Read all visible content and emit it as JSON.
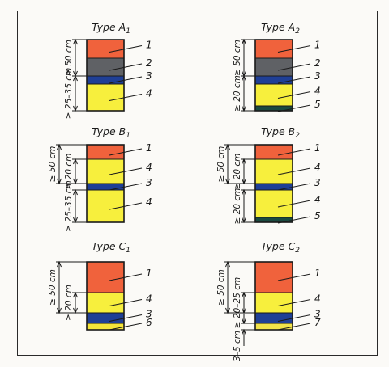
{
  "colors": {
    "1": "#f0623c",
    "2": "#5f6165",
    "3": "#1f3f96",
    "4": "#f7ef3d",
    "5": "#1b4a40",
    "6": "#f5e53a",
    "7": "#f2e34a"
  },
  "panels": [
    {
      "id": "a1",
      "title": "Type A",
      "subscript": "1",
      "layers": [
        {
          "n": "1",
          "h": 23
        },
        {
          "n": "2",
          "h": 22
        },
        {
          "n": "3",
          "h": 10
        },
        {
          "n": "4",
          "h": 33
        }
      ],
      "dimensions": [
        {
          "text": "≥ 50 cm",
          "from": 0,
          "to": 2
        },
        {
          "text": "≥ 25–35 cm",
          "from": 2,
          "to": 4
        }
      ]
    },
    {
      "id": "a2",
      "title": "Type A",
      "subscript": "2",
      "layers": [
        {
          "n": "1",
          "h": 23
        },
        {
          "n": "2",
          "h": 22
        },
        {
          "n": "3",
          "h": 10
        },
        {
          "n": "4",
          "h": 27
        },
        {
          "n": "5",
          "h": 6
        }
      ],
      "dimensions": [
        {
          "text": "≥ 50 cm",
          "from": 0,
          "to": 2
        },
        {
          "text": "≥ 20 cm",
          "from": 2,
          "to": 5
        }
      ]
    },
    {
      "id": "b1",
      "title": "Type B",
      "subscript": "1",
      "layers": [
        {
          "n": "1",
          "h": 18
        },
        {
          "n": "4",
          "h": 30
        },
        {
          "n": "3",
          "h": 8
        },
        {
          "n": "4",
          "h": 40
        }
      ],
      "dimensions": [
        {
          "text": "≥ 50 cm",
          "from": 0,
          "to": 2,
          "outer": true
        },
        {
          "text": "≥ 20 cm",
          "from": 1,
          "to": 2
        },
        {
          "text": "≥ 25–35 cm",
          "from": 3,
          "to": 4
        }
      ]
    },
    {
      "id": "b2",
      "title": "Type B",
      "subscript": "2",
      "layers": [
        {
          "n": "1",
          "h": 18
        },
        {
          "n": "4",
          "h": 30
        },
        {
          "n": "3",
          "h": 8
        },
        {
          "n": "4",
          "h": 34
        },
        {
          "n": "5",
          "h": 6
        }
      ],
      "dimensions": [
        {
          "text": "≥ 50 cm",
          "from": 0,
          "to": 2,
          "outer": true
        },
        {
          "text": "≥ 20 cm",
          "from": 1,
          "to": 2
        },
        {
          "text": "≥ 20 cm",
          "from": 3,
          "to": 5
        }
      ]
    },
    {
      "id": "c1",
      "title": "Type C",
      "subscript": "1",
      "layers": [
        {
          "n": "1",
          "h": 38
        },
        {
          "n": "4",
          "h": 25
        },
        {
          "n": "3",
          "h": 13
        },
        {
          "n": "6",
          "h": 8
        }
      ],
      "dimensions": [
        {
          "text": "≥ 50 cm",
          "from": 0,
          "to": 2,
          "outer": true
        },
        {
          "text": "≥ 20 cm",
          "from": 1,
          "to": 2
        }
      ]
    },
    {
      "id": "c2",
      "title": "Type C",
      "subscript": "2",
      "layers": [
        {
          "n": "1",
          "h": 38
        },
        {
          "n": "4",
          "h": 25
        },
        {
          "n": "3",
          "h": 13
        },
        {
          "n": "7",
          "h": 8
        }
      ],
      "dimensions": [
        {
          "text": "≥ 50 cm",
          "from": 0,
          "to": 2,
          "outer": true
        },
        {
          "text": "≥ 20–25 cm",
          "from": 1,
          "to": 2
        },
        {
          "text": "3–5 cm",
          "from": 3,
          "to": 4,
          "below": true
        }
      ]
    }
  ]
}
